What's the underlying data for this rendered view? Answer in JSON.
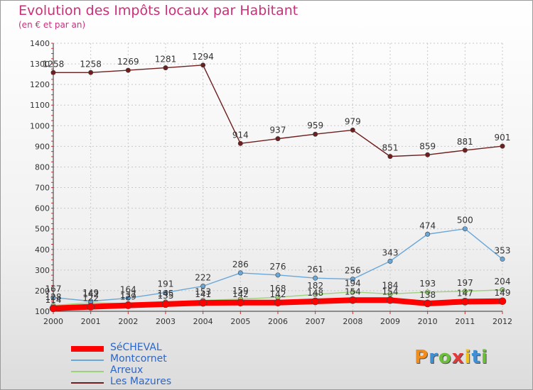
{
  "header": {
    "title": "Evolution des Impôts locaux par Habitant",
    "subtitle": "(en € et par an)"
  },
  "logo": {
    "text": "Proxiti",
    "colors": [
      "#f28c1c",
      "#3d8fd6",
      "#6cbf3c",
      "#e23a3a",
      "#f2c21c",
      "#3d8fd6",
      "#6cbf3c"
    ]
  },
  "chart_data": {
    "type": "line",
    "title": "Evolution des Impôts locaux par Habitant",
    "subtitle": "(en € et par an)",
    "x": [
      "2000",
      "2001",
      "2002",
      "2003",
      "2004",
      "2005",
      "2006",
      "2007",
      "2008",
      "2009",
      "2010",
      "2011",
      "2012"
    ],
    "ylim": [
      100,
      1400
    ],
    "yticks": [
      100,
      200,
      300,
      400,
      500,
      600,
      700,
      800,
      900,
      1000,
      1100,
      1200,
      1300,
      1400
    ],
    "grid": true,
    "legend_position": "bottom-left",
    "series": [
      {
        "name": "SéCHEVAL",
        "color": "#ff0000",
        "values": [
          114,
          122,
          129,
          135,
          141,
          142,
          142,
          148,
          154,
          154,
          138,
          147,
          149
        ],
        "labels": true
      },
      {
        "name": "Montcornet",
        "color": "#6aa7d9",
        "values": [
          167,
          149,
          164,
          191,
          222,
          286,
          276,
          261,
          256,
          343,
          474,
          500,
          353
        ],
        "labels": true
      },
      {
        "name": "Arreux",
        "color": "#9bd27a",
        "values": [
          128,
          142,
          137,
          145,
          153,
          159,
          168,
          182,
          194,
          184,
          193,
          197,
          204
        ],
        "labels": true
      },
      {
        "name": "Les Mazures",
        "color": "#6e1e1e",
        "values": [
          1258,
          1258,
          1269,
          1281,
          1294,
          914,
          937,
          959,
          979,
          851,
          859,
          881,
          901
        ],
        "labels": true
      }
    ]
  }
}
